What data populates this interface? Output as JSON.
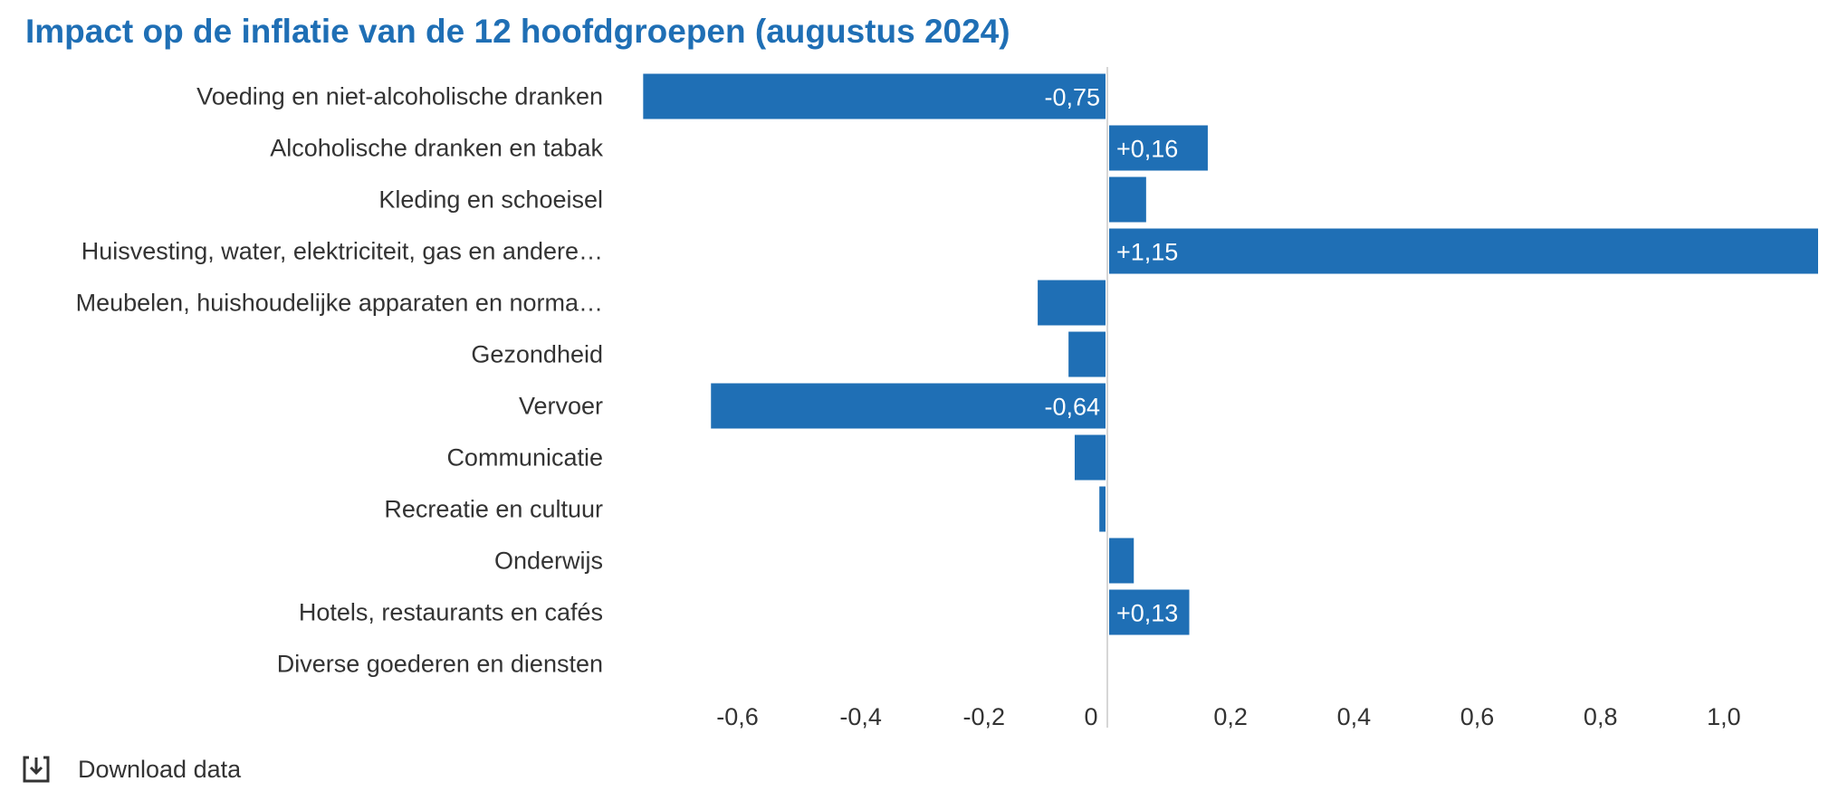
{
  "title": "Impact op de inflatie van de 12 hoofdgroepen (augustus 2024)",
  "download": {
    "label": "Download data",
    "icon": "download-icon"
  },
  "colors": {
    "bar": "#1f6fb5",
    "title": "#1f6fb5",
    "axis": "#c8c8c8",
    "text": "#333333"
  },
  "chart_data": {
    "type": "bar",
    "orientation": "horizontal",
    "title": "Impact op de inflatie van de 12 hoofdgroepen (augustus 2024)",
    "categories": [
      "Voeding en niet-alcoholische dranken",
      "Alcoholische dranken en tabak",
      "Kleding en schoeisel",
      "Huisvesting, water, elektriciteit, gas en andere…",
      "Meubelen, huishoudelijke apparaten en norma…",
      "Gezondheid",
      "Vervoer",
      "Communicatie",
      "Recreatie en cultuur",
      "Onderwijs",
      "Hotels, restaurants en cafés",
      "Diverse goederen en diensten"
    ],
    "values": [
      -0.75,
      0.16,
      0.06,
      1.15,
      -0.11,
      -0.06,
      -0.64,
      -0.05,
      -0.01,
      0.04,
      0.13,
      0.0
    ],
    "data_labels": [
      "-0,75",
      "+0,16",
      "",
      "+1,15",
      "",
      "",
      "-0,64",
      "",
      "",
      "",
      "+0,13",
      ""
    ],
    "xlim": [
      -0.75,
      1.15
    ],
    "xticks": [
      -0.6,
      -0.4,
      -0.2,
      0,
      0.2,
      0.4,
      0.6,
      0.8,
      1.0
    ],
    "xtick_labels": [
      "-0,6",
      "-0,4",
      "-0,2",
      "0",
      "0,2",
      "0,4",
      "0,6",
      "0,8",
      "1,0"
    ],
    "grid": false,
    "legend": "none"
  }
}
